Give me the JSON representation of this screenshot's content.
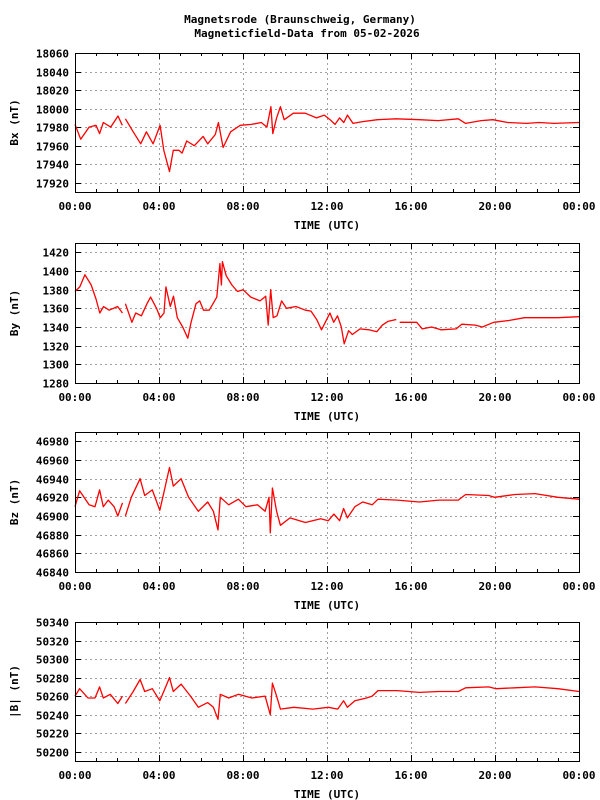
{
  "title_line1": "Magnetsrode (Braunschweig, Germany)",
  "title_line2": "Magneticfield-Data from 05-02-2026",
  "colors": {
    "series": "#ff0000",
    "grid": "#a0a0a0",
    "axis": "#000000"
  },
  "chart_data": [
    {
      "type": "line",
      "ylabel": "Bx (nT)",
      "xlabel": "TIME (UTC)",
      "xlim": [
        0,
        24
      ],
      "ylim": [
        17910,
        18060
      ],
      "xticks": [
        "00:00",
        "04:00",
        "08:00",
        "12:00",
        "16:00",
        "20:00",
        "00:00"
      ],
      "yticks": [
        17920,
        17940,
        17960,
        17980,
        18000,
        18020,
        18040,
        18060
      ],
      "grid": true,
      "x": [
        0,
        0.27,
        0.67,
        1.0,
        1.17,
        1.35,
        1.7,
        2.05,
        2.25,
        null,
        2.4,
        2.77,
        3.13,
        3.4,
        3.72,
        4.05,
        4.23,
        4.5,
        4.68,
        4.95,
        5.1,
        5.32,
        5.68,
        6.1,
        6.32,
        6.68,
        6.83,
        7.05,
        7.41,
        7.87,
        8.4,
        8.87,
        9.14,
        9.33,
        9.42,
        9.6,
        9.78,
        9.96,
        10.4,
        10.96,
        11.5,
        11.87,
        12.15,
        12.38,
        12.6,
        12.8,
        12.97,
        13.24,
        13.7,
        14.4,
        15.3,
        16.4,
        17.3,
        18.25,
        18.6,
        19.34,
        19.9,
        20.6,
        21.5,
        22.1,
        22.8,
        24
      ],
      "y": [
        17983,
        17967,
        17980,
        17982,
        17973,
        17985,
        17980,
        17992,
        17982,
        null,
        17989,
        17975,
        17962,
        17975,
        17962,
        17982,
        17955,
        17932,
        17955,
        17955,
        17952,
        17965,
        17960,
        17970,
        17962,
        17972,
        17985,
        17958,
        17975,
        17982,
        17983,
        17985,
        17980,
        18002,
        17973,
        17990,
        18002,
        17988,
        17995,
        17995,
        17990,
        17993,
        17988,
        17983,
        17990,
        17985,
        17993,
        17984,
        17986,
        17988,
        17989,
        17988,
        17987,
        17989,
        17984,
        17987,
        17988,
        17985,
        17984,
        17985,
        17984,
        17985
      ]
    },
    {
      "type": "line",
      "ylabel": "By (nT)",
      "xlabel": "TIME (UTC)",
      "xlim": [
        0,
        24
      ],
      "ylim": [
        1280,
        1430
      ],
      "xticks": [
        "00:00",
        "04:00",
        "08:00",
        "12:00",
        "16:00",
        "20:00",
        "00:00"
      ],
      "yticks": [
        1280,
        1300,
        1320,
        1340,
        1360,
        1380,
        1400,
        1420
      ],
      "grid": true,
      "x": [
        0,
        0.23,
        0.47,
        0.77,
        1.0,
        1.18,
        1.36,
        1.63,
        2.03,
        2.26,
        null,
        2.4,
        2.71,
        2.89,
        3.16,
        3.43,
        3.6,
        3.88,
        4.06,
        4.24,
        4.33,
        4.54,
        4.69,
        4.87,
        5.13,
        5.37,
        5.53,
        5.76,
        5.94,
        6.12,
        6.39,
        6.57,
        6.75,
        6.9,
        6.97,
        7.02,
        7.2,
        7.47,
        7.74,
        8.0,
        8.37,
        8.81,
        9.08,
        9.2,
        9.32,
        9.44,
        9.62,
        9.84,
        10.07,
        10.52,
        10.97,
        11.24,
        11.51,
        11.74,
        11.92,
        12.14,
        12.32,
        12.5,
        12.68,
        12.82,
        13.03,
        13.21,
        13.57,
        14.0,
        14.37,
        14.64,
        14.9,
        15.3,
        null,
        15.46,
        16.27,
        16.54,
        16.98,
        17.43,
        18.15,
        18.42,
        19.05,
        19.4,
        19.94,
        20.66,
        21.4,
        22.3,
        23.0,
        24
      ],
      "y": [
        1378,
        1383,
        1396,
        1385,
        1370,
        1355,
        1362,
        1358,
        1362,
        1355,
        null,
        1365,
        1345,
        1355,
        1352,
        1365,
        1372,
        1360,
        1350,
        1355,
        1383,
        1362,
        1373,
        1350,
        1340,
        1328,
        1345,
        1365,
        1368,
        1358,
        1358,
        1365,
        1372,
        1408,
        1385,
        1410,
        1395,
        1385,
        1378,
        1380,
        1372,
        1368,
        1373,
        1342,
        1380,
        1350,
        1352,
        1368,
        1360,
        1362,
        1358,
        1357,
        1348,
        1337,
        1345,
        1355,
        1345,
        1352,
        1340,
        1322,
        1336,
        1332,
        1338,
        1337,
        1335,
        1342,
        1346,
        1348,
        null,
        1345,
        1345,
        1338,
        1340,
        1337,
        1338,
        1343,
        1342,
        1340,
        1345,
        1347,
        1350,
        1350,
        1350,
        1351
      ]
    },
    {
      "type": "line",
      "ylabel": "Bz (nT)",
      "xlabel": "TIME (UTC)",
      "xlim": [
        0,
        24
      ],
      "ylim": [
        46840,
        46990
      ],
      "xticks": [
        "00:00",
        "04:00",
        "08:00",
        "12:00",
        "16:00",
        "20:00",
        "00:00"
      ],
      "yticks": [
        46840,
        46860,
        46880,
        46900,
        46920,
        46940,
        46960,
        46980
      ],
      "grid": true,
      "x": [
        0,
        0.22,
        0.67,
        0.95,
        1.17,
        1.35,
        1.58,
        1.86,
        2.04,
        2.26,
        null,
        2.4,
        2.68,
        3.1,
        3.32,
        3.68,
        4.04,
        4.28,
        4.5,
        4.68,
        5.05,
        5.41,
        5.87,
        6.32,
        6.59,
        6.81,
        6.92,
        7.32,
        7.78,
        8.14,
        8.69,
        9.05,
        9.24,
        9.3,
        9.4,
        9.6,
        9.78,
        10.24,
        10.97,
        11.7,
        12.06,
        12.33,
        12.6,
        12.79,
        12.97,
        13.33,
        13.7,
        14.15,
        14.43,
        15.34,
        16.4,
        17.33,
        18.25,
        18.6,
        19.7,
        19.97,
        20.95,
        21.9,
        23.0,
        24
      ],
      "y": [
        46910,
        46927,
        46912,
        46910,
        46928,
        46910,
        46917,
        46910,
        46900,
        46914,
        null,
        46900,
        46920,
        46940,
        46922,
        46928,
        46906,
        46930,
        46952,
        46932,
        46940,
        46920,
        46905,
        46915,
        46905,
        46885,
        46920,
        46912,
        46918,
        46910,
        46912,
        46905,
        46920,
        46882,
        46930,
        46905,
        46890,
        46898,
        46893,
        46897,
        46895,
        46902,
        46895,
        46908,
        46898,
        46910,
        46915,
        46912,
        46918,
        46917,
        46915,
        46917,
        46917,
        46923,
        46922,
        46920,
        46923,
        46924,
        46920,
        46918
      ]
    },
    {
      "type": "line",
      "ylabel": "|B| (nT)",
      "xlabel": "TIME (UTC)",
      "xlim": [
        0,
        24
      ],
      "ylim": [
        50190,
        50340
      ],
      "xticks": [
        "00:00",
        "04:00",
        "08:00",
        "12:00",
        "16:00",
        "20:00",
        "00:00"
      ],
      "yticks": [
        50200,
        50220,
        50240,
        50260,
        50280,
        50300,
        50320,
        50340
      ],
      "grid": true,
      "x": [
        0,
        0.22,
        0.62,
        0.95,
        1.17,
        1.35,
        1.68,
        2.04,
        2.26,
        null,
        2.4,
        2.77,
        3.1,
        3.32,
        3.68,
        4.04,
        4.32,
        4.5,
        4.68,
        5.05,
        5.5,
        5.87,
        6.32,
        6.59,
        6.81,
        6.92,
        7.32,
        7.78,
        8.42,
        9.05,
        9.3,
        9.4,
        9.6,
        9.78,
        10.42,
        11.33,
        12.06,
        12.51,
        12.79,
        12.97,
        13.33,
        13.88,
        14.15,
        14.43,
        15.34,
        16.4,
        17.33,
        18.25,
        18.6,
        19.7,
        20.05,
        20.95,
        21.9,
        23.0,
        24
      ],
      "y": [
        50260,
        50268,
        50258,
        50258,
        50270,
        50258,
        50262,
        50252,
        50260,
        null,
        50252,
        50265,
        50278,
        50265,
        50268,
        50255,
        50270,
        50280,
        50265,
        50273,
        50260,
        50248,
        50253,
        50248,
        50235,
        50262,
        50258,
        50262,
        50258,
        50260,
        50240,
        50274,
        50260,
        50246,
        50248,
        50246,
        50248,
        50246,
        50255,
        50248,
        50255,
        50258,
        50260,
        50266,
        50266,
        50264,
        50265,
        50265,
        50269,
        50270,
        50268,
        50269,
        50270,
        50268,
        50265
      ]
    }
  ]
}
